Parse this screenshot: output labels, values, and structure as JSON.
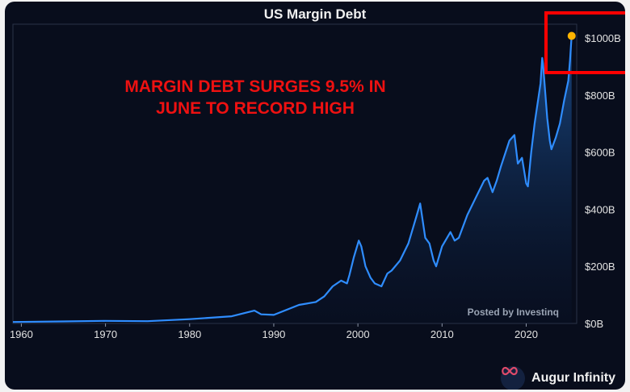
{
  "header": {
    "title": "US Margin Debt"
  },
  "annotation": {
    "headline": "MARGIN DEBT SURGES 9.5% IN JUNE TO RECORD HIGH"
  },
  "watermark": "Posted by Investinq",
  "brand": {
    "name": "Augur Infinity",
    "icon": "infinity-logo-icon"
  },
  "colors": {
    "background": "#080d1c",
    "line": "#2f8dff",
    "area_top": "#1b4f8f",
    "headline": "#ee1111",
    "highlight_box": "#ff0000",
    "endpoint_marker": "#ffb400"
  },
  "chart_data": {
    "type": "area",
    "title": "US Margin Debt",
    "xlabel": "",
    "ylabel": "",
    "xlim": [
      1959,
      2026
    ],
    "ylim": [
      0,
      1000
    ],
    "x_ticks": [
      1960,
      1970,
      1980,
      1990,
      2000,
      2010,
      2020
    ],
    "y_ticks": [
      0,
      200,
      400,
      600,
      800,
      1000
    ],
    "y_tick_labels": [
      "$0B",
      "$200B",
      "$400B",
      "$600B",
      "$800B",
      "$1000B"
    ],
    "y_axis_side": "right",
    "grid": false,
    "legend": "none",
    "series": [
      {
        "x": [
          1959,
          1965,
          1970,
          1975,
          1980,
          1985,
          1987.7,
          1988.5,
          1990,
          1993,
          1995,
          1996,
          1997,
          1998,
          1998.7,
          1999,
          1999.5,
          2000.1,
          2000.4,
          2000.9,
          2001.5,
          2002,
          2002.8,
          2003.5,
          2004,
          2005,
          2006,
          2007,
          2007.4,
          2007.6,
          2008,
          2008.5,
          2009,
          2009.3,
          2010,
          2011,
          2011.5,
          2012,
          2013,
          2014,
          2015,
          2015.4,
          2016,
          2016.5,
          2017,
          2018,
          2018.6,
          2019,
          2019.5,
          2020,
          2020.2,
          2020.6,
          2021,
          2021.7,
          2021.9,
          2022,
          2022.5,
          2022.8,
          2023,
          2023.5,
          2024,
          2024.5,
          2025,
          2025.2,
          2025.4
        ],
        "y": [
          5,
          7,
          9,
          8,
          15,
          25,
          45,
          32,
          30,
          65,
          75,
          95,
          130,
          150,
          140,
          170,
          230,
          290,
          270,
          200,
          160,
          140,
          130,
          175,
          185,
          220,
          280,
          380,
          420,
          380,
          300,
          280,
          220,
          200,
          270,
          320,
          290,
          300,
          380,
          440,
          500,
          510,
          460,
          500,
          550,
          640,
          660,
          560,
          580,
          490,
          480,
          600,
          700,
          840,
          930,
          910,
          720,
          640,
          610,
          650,
          700,
          780,
          850,
          920,
          1007
        ]
      }
    ],
    "highlight": {
      "label": "record high",
      "x": 2025.4,
      "y": 1007
    }
  }
}
